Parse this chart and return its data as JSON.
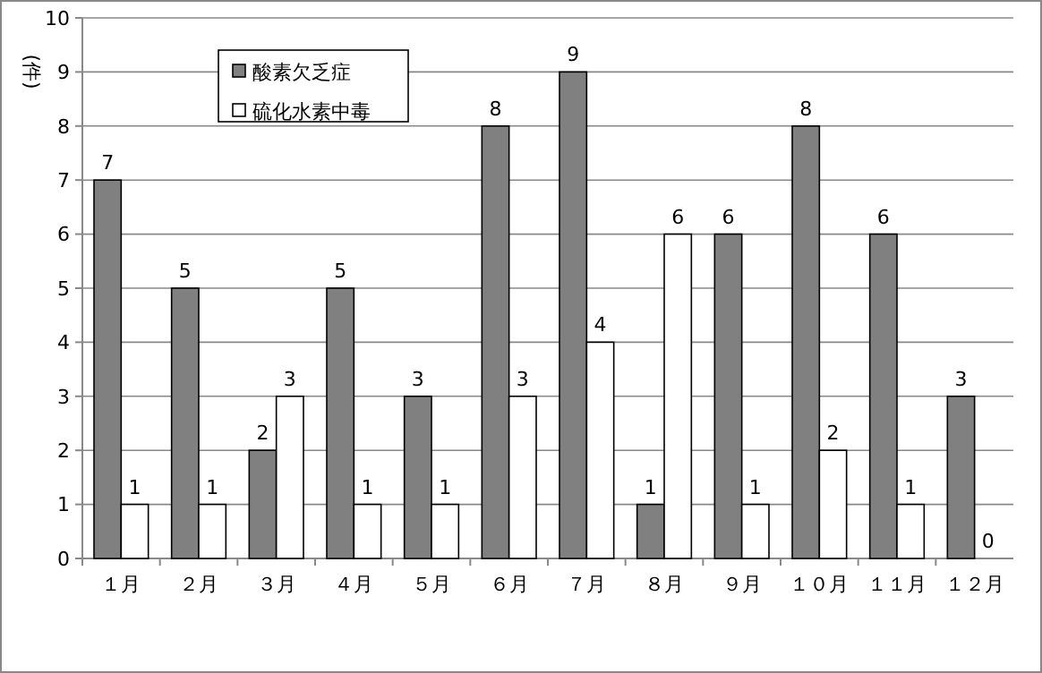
{
  "chart_data": {
    "type": "bar",
    "ylabel": "(件)",
    "categories": [
      "１月",
      "２月",
      "３月",
      "４月",
      "５月",
      "６月",
      "７月",
      "８月",
      "９月",
      "１０月",
      "１１月",
      "１２月"
    ],
    "series": [
      {
        "name": "酸素欠乏症",
        "color": "#808080",
        "values": [
          7,
          5,
          2,
          5,
          3,
          8,
          9,
          1,
          6,
          8,
          6,
          3
        ]
      },
      {
        "name": "硫化水素中毒",
        "color": "#ffffff",
        "values": [
          1,
          1,
          3,
          1,
          1,
          3,
          4,
          6,
          1,
          2,
          1,
          0
        ]
      }
    ],
    "ylim": [
      0,
      10
    ],
    "yticks": [
      0,
      1,
      2,
      3,
      4,
      5,
      6,
      7,
      8,
      9,
      10
    ],
    "grid": "y",
    "legend": "top left",
    "data_labels": true
  }
}
